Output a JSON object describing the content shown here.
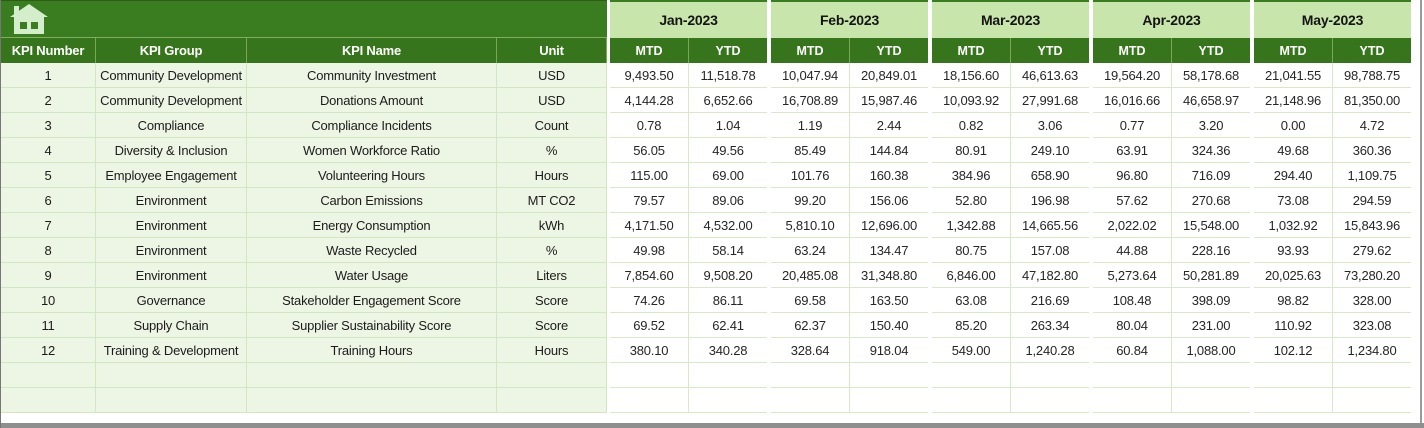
{
  "table": {
    "corner_icon": "home-icon",
    "months": [
      "Jan-2023",
      "Feb-2023",
      "Mar-2023",
      "Apr-2023",
      "May-2023"
    ],
    "sub_headers": [
      "MTD",
      "YTD"
    ],
    "left_headers": [
      "KPI Number",
      "KPI Group",
      "KPI Name",
      "Unit"
    ],
    "rows": [
      {
        "num": "1",
        "group": "Community Development",
        "name": "Community Investment",
        "unit": "USD",
        "values": [
          "9,493.50",
          "11,518.78",
          "10,047.94",
          "20,849.01",
          "18,156.60",
          "46,613.63",
          "19,564.20",
          "58,178.68",
          "21,041.55",
          "98,788.75"
        ]
      },
      {
        "num": "2",
        "group": "Community Development",
        "name": "Donations Amount",
        "unit": "USD",
        "values": [
          "4,144.28",
          "6,652.66",
          "16,708.89",
          "15,987.46",
          "10,093.92",
          "27,991.68",
          "16,016.66",
          "46,658.97",
          "21,148.96",
          "81,350.00"
        ]
      },
      {
        "num": "3",
        "group": "Compliance",
        "name": "Compliance Incidents",
        "unit": "Count",
        "values": [
          "0.78",
          "1.04",
          "1.19",
          "2.44",
          "0.82",
          "3.06",
          "0.77",
          "3.20",
          "0.00",
          "4.72"
        ]
      },
      {
        "num": "4",
        "group": "Diversity & Inclusion",
        "name": "Women Workforce Ratio",
        "unit": "%",
        "values": [
          "56.05",
          "49.56",
          "85.49",
          "144.84",
          "80.91",
          "249.10",
          "63.91",
          "324.36",
          "49.68",
          "360.36"
        ]
      },
      {
        "num": "5",
        "group": "Employee Engagement",
        "name": "Volunteering Hours",
        "unit": "Hours",
        "values": [
          "115.00",
          "69.00",
          "101.76",
          "160.38",
          "384.96",
          "658.90",
          "96.80",
          "716.09",
          "294.40",
          "1,109.75"
        ]
      },
      {
        "num": "6",
        "group": "Environment",
        "name": "Carbon Emissions",
        "unit": "MT CO2",
        "values": [
          "79.57",
          "89.06",
          "99.20",
          "156.06",
          "52.80",
          "196.98",
          "57.62",
          "270.68",
          "73.08",
          "294.59"
        ]
      },
      {
        "num": "7",
        "group": "Environment",
        "name": "Energy Consumption",
        "unit": "kWh",
        "values": [
          "4,171.50",
          "4,532.00",
          "5,810.10",
          "12,696.00",
          "1,342.88",
          "14,665.56",
          "2,022.02",
          "15,548.00",
          "1,032.92",
          "15,843.96"
        ]
      },
      {
        "num": "8",
        "group": "Environment",
        "name": "Waste Recycled",
        "unit": "%",
        "values": [
          "49.98",
          "58.14",
          "63.24",
          "134.47",
          "80.75",
          "157.08",
          "44.88",
          "228.16",
          "93.93",
          "279.62"
        ]
      },
      {
        "num": "9",
        "group": "Environment",
        "name": "Water Usage",
        "unit": "Liters",
        "values": [
          "7,854.60",
          "9,508.20",
          "20,485.08",
          "31,348.80",
          "6,846.00",
          "47,182.80",
          "5,273.64",
          "50,281.89",
          "20,025.63",
          "73,280.20"
        ]
      },
      {
        "num": "10",
        "group": "Governance",
        "name": "Stakeholder Engagement Score",
        "unit": "Score",
        "values": [
          "74.26",
          "86.11",
          "69.58",
          "163.50",
          "63.08",
          "216.69",
          "108.48",
          "398.09",
          "98.82",
          "328.00"
        ]
      },
      {
        "num": "11",
        "group": "Supply Chain",
        "name": "Supplier Sustainability Score",
        "unit": "Score",
        "values": [
          "69.52",
          "62.41",
          "62.37",
          "150.40",
          "85.20",
          "263.34",
          "80.04",
          "231.00",
          "110.92",
          "323.08"
        ]
      },
      {
        "num": "12",
        "group": "Training & Development",
        "name": "Training Hours",
        "unit": "Hours",
        "values": [
          "380.10",
          "340.28",
          "328.64",
          "918.04",
          "549.00",
          "1,240.28",
          "60.84",
          "1,088.00",
          "102.12",
          "1,234.80"
        ]
      }
    ],
    "empty_row_count": 2
  },
  "colors": {
    "banner_green": "#3a7d21",
    "header_green": "#37751c",
    "month_light_green": "#c8e6ab",
    "row_light_green": "#edf5e4",
    "gridline_green": "#d2e6c0",
    "scrollbar_gray": "#8f8f8f"
  }
}
